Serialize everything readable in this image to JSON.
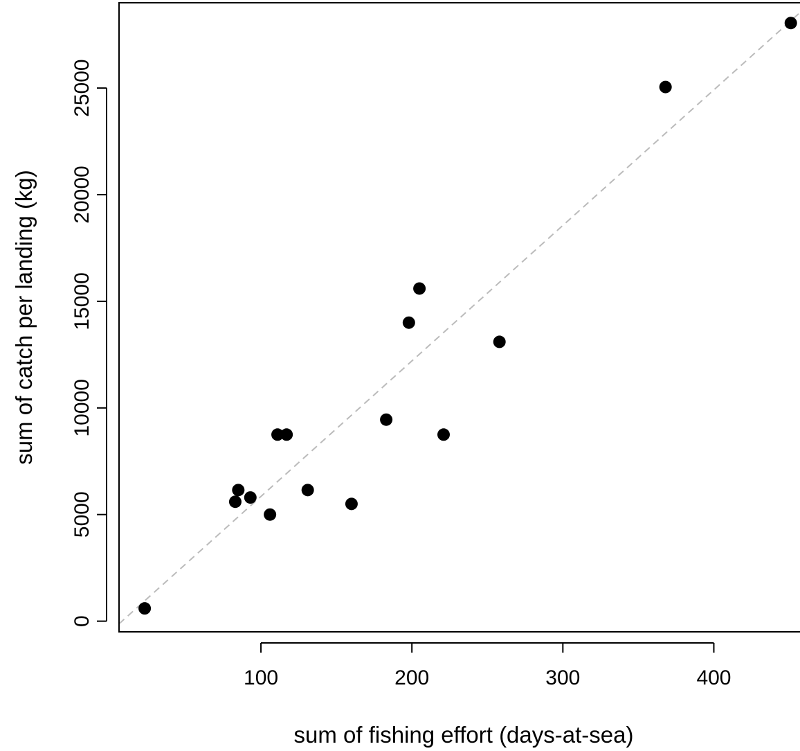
{
  "chart_data": {
    "type": "scatter",
    "xlabel": "sum of fishing effort (days-at-sea)",
    "ylabel": "sum of catch per landing (kg)",
    "xlim": [
      6,
      458
    ],
    "ylim": [
      -500,
      29000
    ],
    "xticks": [
      100,
      200,
      300,
      400
    ],
    "yticks": [
      0,
      5000,
      10000,
      15000,
      20000,
      25000
    ],
    "grid": false,
    "points": [
      {
        "x": 23,
        "y": 600
      },
      {
        "x": 83,
        "y": 5600
      },
      {
        "x": 85,
        "y": 6150
      },
      {
        "x": 93,
        "y": 5800
      },
      {
        "x": 106,
        "y": 5000
      },
      {
        "x": 111,
        "y": 8750
      },
      {
        "x": 117,
        "y": 8750
      },
      {
        "x": 131,
        "y": 6150
      },
      {
        "x": 160,
        "y": 5500
      },
      {
        "x": 183,
        "y": 9450
      },
      {
        "x": 198,
        "y": 14000
      },
      {
        "x": 205,
        "y": 15600
      },
      {
        "x": 221,
        "y": 8750
      },
      {
        "x": 258,
        "y": 13100
      },
      {
        "x": 368,
        "y": 25050
      },
      {
        "x": 451,
        "y": 28050
      }
    ],
    "reference_line": {
      "style": "dashed",
      "color": "#bbbbbb",
      "from": {
        "x": 6,
        "y": -125
      },
      "to": {
        "x": 458,
        "y": 28600
      }
    },
    "point_color": "#000000"
  }
}
